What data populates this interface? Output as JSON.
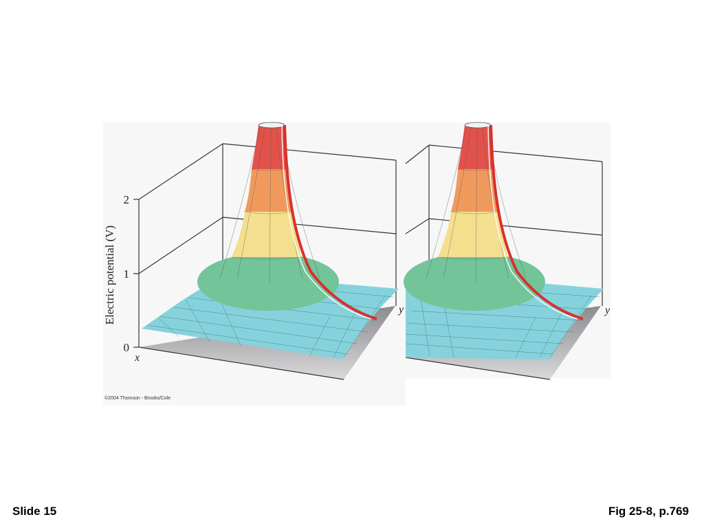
{
  "figure": {
    "ylabel": "Electric potential (V)",
    "ticks": [
      "0",
      "1",
      "2"
    ],
    "axis_x": "x",
    "axis_y": "y",
    "copyright": "©2004 Thomson - Brooks/Cole"
  },
  "colors": {
    "band_red": "#e2524a",
    "band_orange": "#ef9a5c",
    "band_yellow": "#f4df8e",
    "band_green": "#74c49a",
    "sheet_cyan": "#86d2dc",
    "mesh_line": "#2c5a62",
    "edge_red": "#d9302c"
  },
  "footer": {
    "slide": "Slide 15",
    "figref": "Fig 25-8, p.769"
  }
}
